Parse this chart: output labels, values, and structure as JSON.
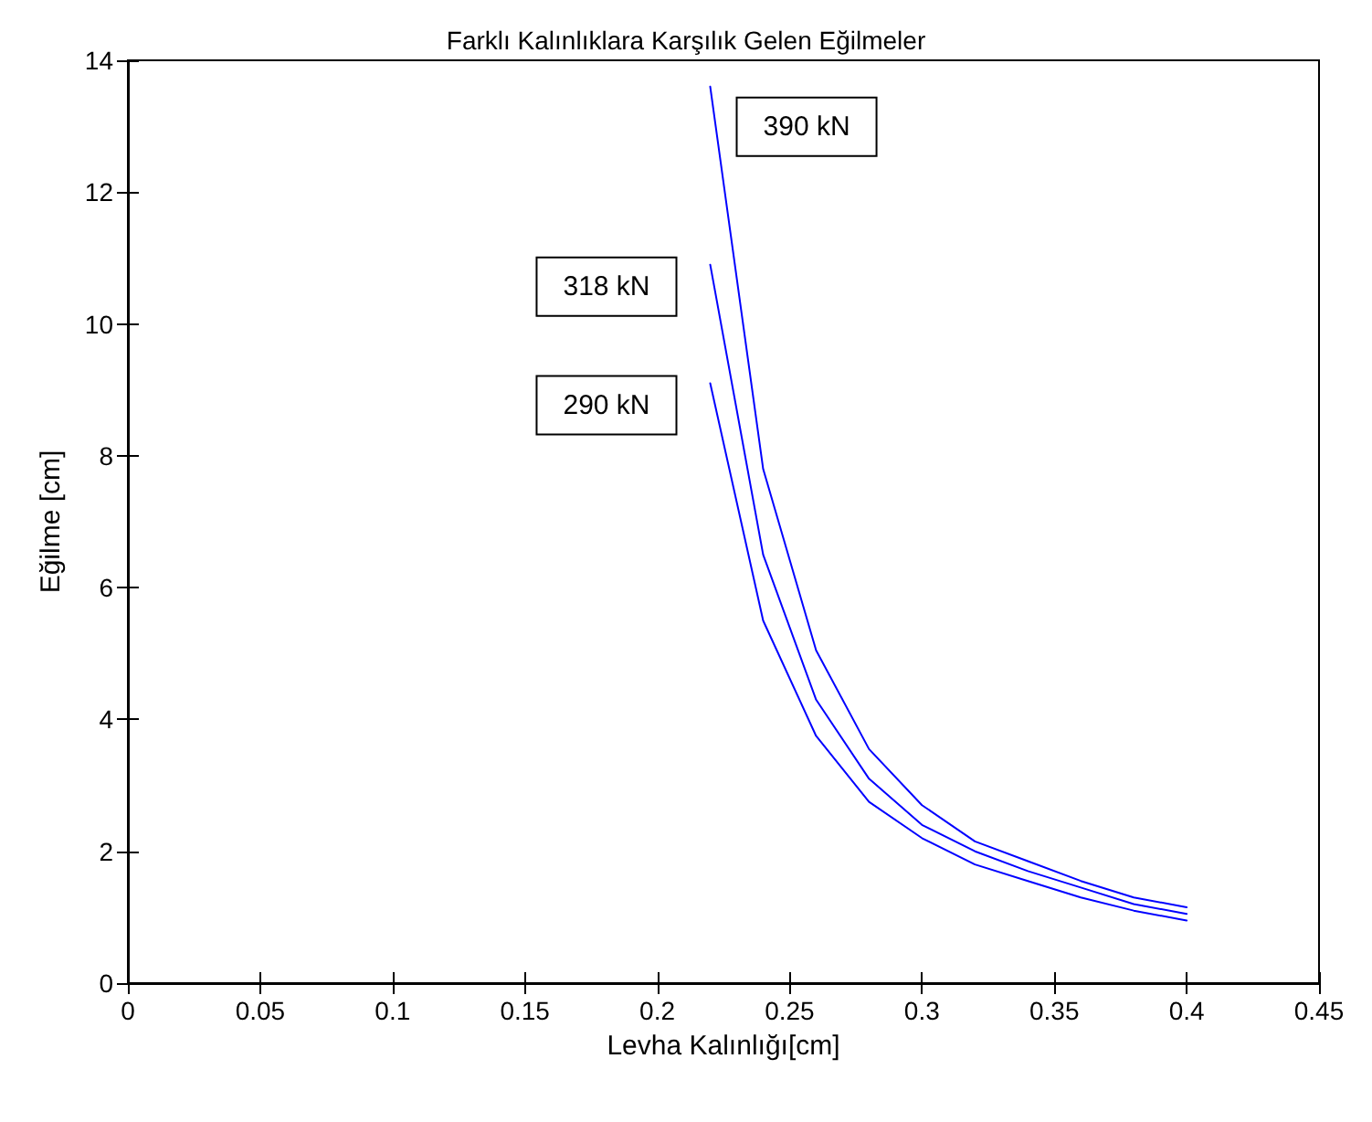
{
  "chart_data": {
    "type": "line",
    "title": "Farklı Kalınlıklara Karşılık Gelen Eğilmeler",
    "xlabel": "Levha Kalınlığı[cm]",
    "ylabel": "Eğilme [cm]",
    "x": [
      0.22,
      0.24,
      0.26,
      0.28,
      0.3,
      0.32,
      0.34,
      0.36,
      0.38,
      0.4
    ],
    "series": [
      {
        "name": "290 kN",
        "color": "#0000ff",
        "values": [
          9.1,
          5.5,
          3.75,
          2.75,
          2.2,
          1.8,
          1.55,
          1.3,
          1.1,
          0.95
        ]
      },
      {
        "name": "318 kN",
        "color": "#0000ff",
        "values": [
          10.9,
          6.5,
          4.3,
          3.1,
          2.4,
          2.0,
          1.7,
          1.45,
          1.2,
          1.05
        ]
      },
      {
        "name": "390 kN",
        "color": "#0000ff",
        "values": [
          13.6,
          7.8,
          5.05,
          3.55,
          2.7,
          2.15,
          1.85,
          1.55,
          1.3,
          1.15
        ]
      }
    ],
    "xlim": [
      0,
      0.45
    ],
    "xticks": [
      0,
      0.05,
      0.1,
      0.15,
      0.2,
      0.25,
      0.3,
      0.35,
      0.4,
      0.45
    ],
    "ylim": [
      0,
      14
    ],
    "yticks": [
      0,
      2,
      4,
      6,
      8,
      10,
      12,
      14
    ],
    "grid": false,
    "legend": false,
    "marker": "none",
    "line_style": "solid"
  }
}
